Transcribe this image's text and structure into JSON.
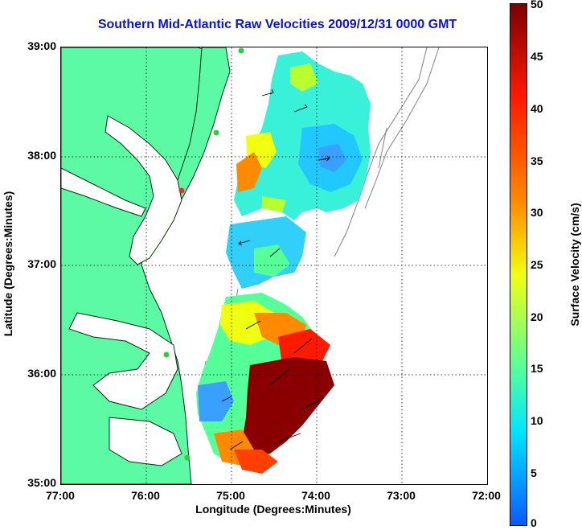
{
  "title": "Southern Mid-Atlantic Raw Velocities 2009/12/31 0000 GMT",
  "axes": {
    "xlabel": "Longitude (Degrees:Minutes)",
    "ylabel": "Latitude (Degrees:Minutes)",
    "xticks": [
      "77:00",
      "76:00",
      "75:00",
      "74:00",
      "73:00",
      "72:00"
    ],
    "yticks": [
      "39:00",
      "38:00",
      "37:00",
      "36:00",
      "35:00"
    ],
    "xlim": [
      -77,
      -72
    ],
    "ylim": [
      35,
      39
    ],
    "grid": "dotted"
  },
  "colorbar": {
    "label": "Surface Velocity (cm/s)",
    "ticks": [
      "50",
      "45",
      "40",
      "35",
      "30",
      "25",
      "20",
      "15",
      "10",
      "5",
      "0"
    ],
    "range": [
      0,
      50
    ],
    "colormap": [
      "#0a5aff",
      "#00e5ff",
      "#55ff9a",
      "#f0ff10",
      "#ff8a00",
      "#ff1a00",
      "#7a0000"
    ]
  },
  "colors": {
    "land": "#5dfaa5",
    "coastline": "#000000",
    "bathymetry": "#808080",
    "sites_active": "#2ecc40",
    "site_inactive": "#e03030"
  }
}
